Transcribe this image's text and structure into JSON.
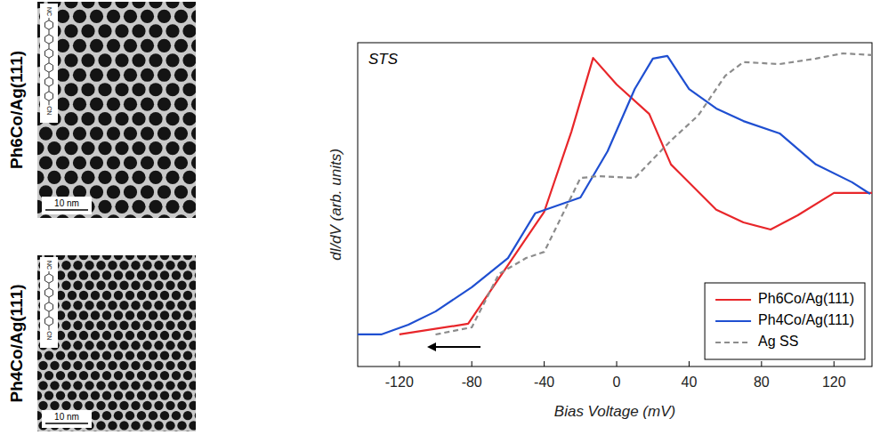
{
  "panels": [
    {
      "label": "Ph6Co/Ag(111)",
      "scale_bar": "10 nm",
      "molecule": {
        "top": "NC",
        "bottom": "CN",
        "rings": 6
      }
    },
    {
      "label": "Ph4Co/Ag(111)",
      "scale_bar": "10 nm",
      "molecule": {
        "top": "NC",
        "bottom": "CN",
        "rings": 4
      }
    }
  ],
  "chart_data": {
    "type": "line",
    "title": "STS",
    "x_label": "Bias Voltage (mV)",
    "y_label": "dI/dV (arb. units)",
    "xlim": [
      -143,
      141
    ],
    "ylim": [
      0,
      100
    ],
    "xticks": [
      -120,
      -80,
      -40,
      0,
      40,
      80,
      120
    ],
    "tick_labels": "x",
    "legend": "lower right",
    "series": [
      {
        "name": "Ph6Co/Ag(111)",
        "color": "#e8262a",
        "line_style": "solid",
        "x": [
          -120,
          -82,
          -40,
          -25,
          -13,
          0,
          18,
          30,
          55,
          70,
          85,
          100,
          120,
          141
        ],
        "values": [
          9.9,
          13.2,
          47.8,
          72.5,
          95.3,
          87.1,
          78.0,
          62.4,
          48.4,
          44.5,
          42.3,
          46.7,
          53.6,
          53.6
        ]
      },
      {
        "name": "Ph4Co/Ag(111)",
        "color": "#1f4fd1",
        "line_style": "solid",
        "x": [
          -143,
          -130,
          -115,
          -100,
          -80,
          -60,
          -45,
          -20,
          -5,
          10,
          20,
          28,
          40,
          55,
          70,
          90,
          110,
          130,
          140
        ],
        "values": [
          9.9,
          9.9,
          12.9,
          17.0,
          24.5,
          33.5,
          47.3,
          52.2,
          66.5,
          85.7,
          95.1,
          95.9,
          85.7,
          79.7,
          75.8,
          72.0,
          62.4,
          56.9,
          53.3
        ]
      },
      {
        "name": "Ag SS",
        "color": "#8c8c8c",
        "line_style": "dashed",
        "x": [
          -100,
          -80,
          -65,
          -50,
          -40,
          -20,
          -10,
          10,
          30,
          45,
          60,
          70,
          90,
          110,
          125,
          141
        ],
        "values": [
          9.9,
          12.1,
          28.6,
          33.5,
          35.4,
          58.2,
          58.8,
          58.2,
          69.8,
          77.5,
          89.8,
          94.0,
          93.4,
          95.1,
          96.7,
          96.2
        ]
      }
    ]
  }
}
